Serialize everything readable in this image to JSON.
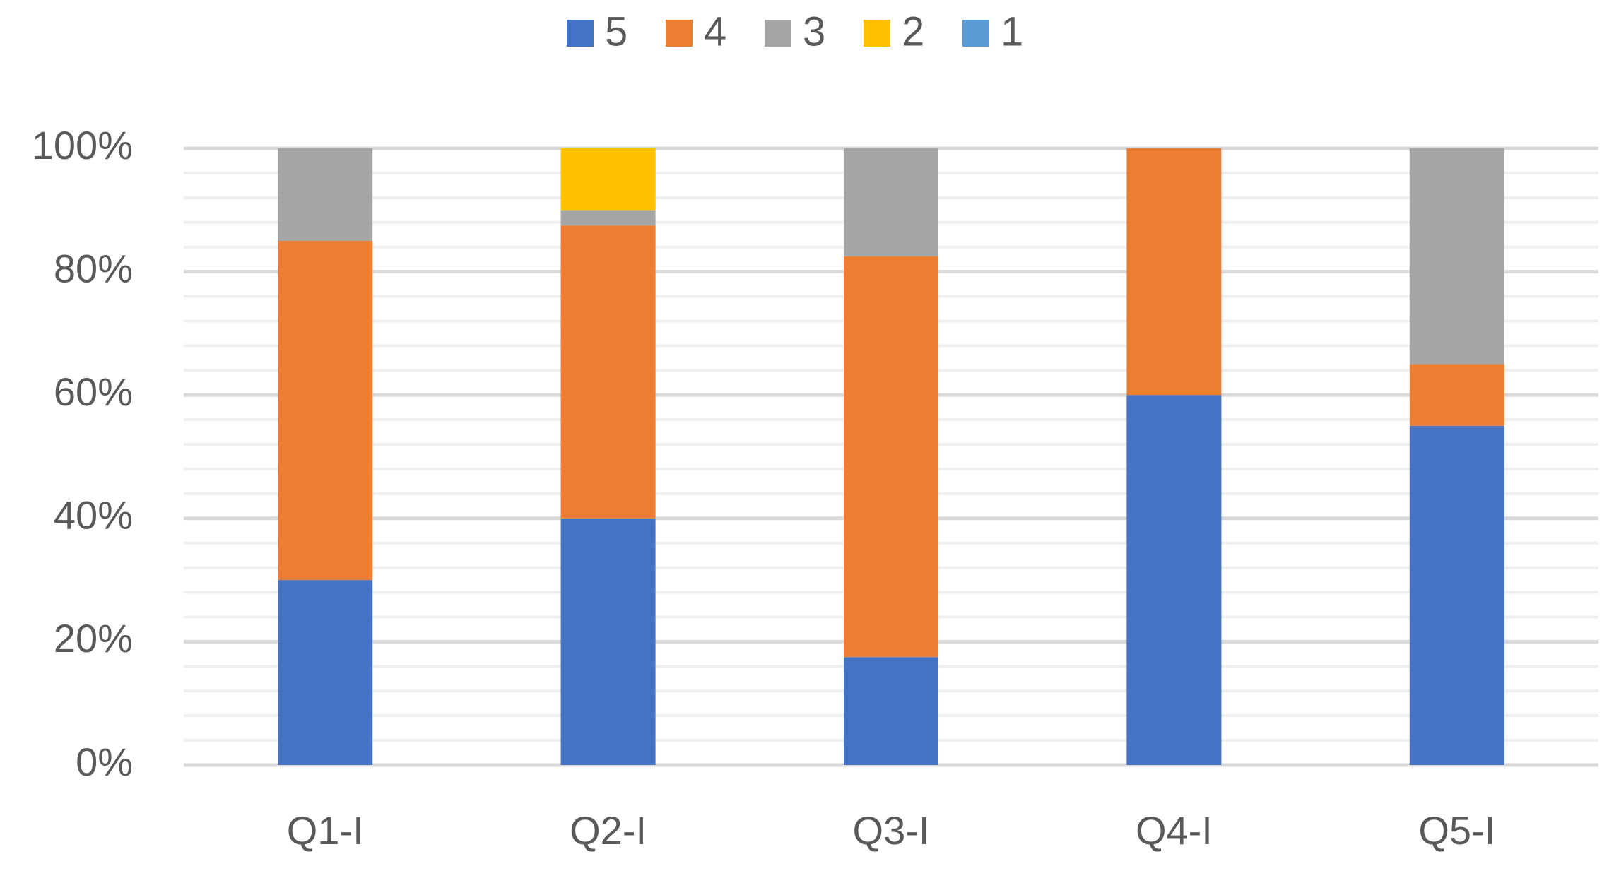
{
  "chart_data": {
    "type": "bar",
    "stacked": true,
    "percent_stacked": true,
    "categories": [
      "Q1-I",
      "Q2-I",
      "Q3-I",
      "Q4-I",
      "Q5-I"
    ],
    "series": [
      {
        "name": "5",
        "color": "#4472C4",
        "values": [
          30,
          40,
          17.5,
          60,
          55
        ]
      },
      {
        "name": "4",
        "color": "#ED7D31",
        "values": [
          55,
          47.5,
          65,
          40,
          10
        ]
      },
      {
        "name": "3",
        "color": "#A5A5A5",
        "values": [
          15,
          2.5,
          17.5,
          0,
          35
        ]
      },
      {
        "name": "2",
        "color": "#FFC000",
        "values": [
          0,
          10,
          0,
          0,
          0
        ]
      },
      {
        "name": "1",
        "color": "#5B9BD5",
        "values": [
          0,
          0,
          0,
          0,
          0
        ]
      }
    ],
    "legend_order": [
      "5",
      "4",
      "3",
      "2",
      "1"
    ],
    "legend_position": "top",
    "yticks": [
      "0%",
      "20%",
      "40%",
      "60%",
      "80%",
      "100%"
    ],
    "ylim": [
      0,
      100
    ],
    "grid": true,
    "minor_grid": true,
    "title": "",
    "xlabel": "",
    "ylabel": ""
  }
}
